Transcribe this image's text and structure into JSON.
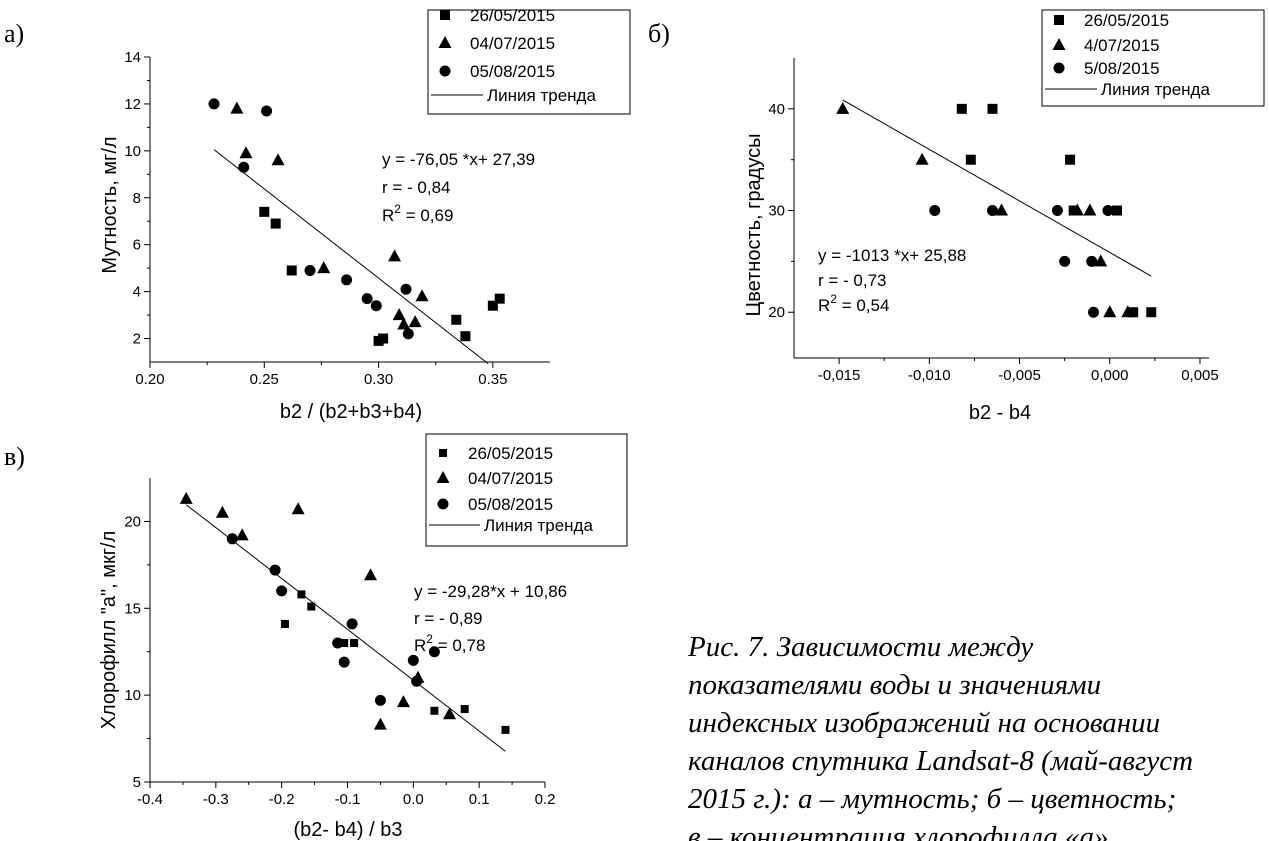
{
  "chart_data": [
    {
      "type": "scatter",
      "panel_label": "а)",
      "xlabel": "b2 / (b2+b3+b4)",
      "ylabel": "Мутность, мг/л",
      "xlim": [
        0.2,
        0.375
      ],
      "ylim": [
        1,
        14
      ],
      "xticks": [
        0.2,
        0.25,
        0.3,
        0.35
      ],
      "xtick_labels": [
        "0.20",
        "0.25",
        "0.30",
        "0.35"
      ],
      "yticks": [
        2,
        4,
        6,
        8,
        10,
        12,
        14
      ],
      "ytick_labels": [
        "2",
        "4",
        "6",
        "8",
        "10",
        "12",
        "14"
      ],
      "legend_position": "top-right",
      "series": [
        {
          "name": "26/05/2015",
          "marker": "square",
          "points": [
            [
              0.25,
              7.4
            ],
            [
              0.255,
              6.9
            ],
            [
              0.262,
              4.9
            ],
            [
              0.3,
              1.9
            ],
            [
              0.302,
              2.0
            ],
            [
              0.334,
              2.8
            ],
            [
              0.338,
              2.1
            ],
            [
              0.35,
              3.4
            ],
            [
              0.353,
              3.7
            ]
          ]
        },
        {
          "name": "04/07/2015",
          "marker": "triangle",
          "points": [
            [
              0.238,
              11.8
            ],
            [
              0.242,
              9.9
            ],
            [
              0.256,
              9.6
            ],
            [
              0.276,
              5.0
            ],
            [
              0.307,
              5.5
            ],
            [
              0.309,
              3.0
            ],
            [
              0.311,
              2.6
            ],
            [
              0.316,
              2.7
            ],
            [
              0.319,
              3.8
            ]
          ]
        },
        {
          "name": "05/08/2015",
          "marker": "circle",
          "points": [
            [
              0.228,
              12.0
            ],
            [
              0.251,
              11.7
            ],
            [
              0.241,
              9.3
            ],
            [
              0.27,
              4.9
            ],
            [
              0.286,
              4.5
            ],
            [
              0.295,
              3.7
            ],
            [
              0.299,
              3.4
            ],
            [
              0.312,
              4.1
            ],
            [
              0.313,
              2.2
            ]
          ]
        }
      ],
      "trend": {
        "name": "Линия тренда",
        "slope": -76.05,
        "intercept": 27.39,
        "x_range": [
          0.228,
          0.348
        ]
      },
      "annotations": {
        "equation": "y = -76,05 *x+ 27,39",
        "r": "r = - 0,84",
        "r2_prefix": "R",
        "r2_sup": "2",
        "r2_value": " = 0,69"
      }
    },
    {
      "type": "scatter",
      "panel_label": "б)",
      "xlabel": "b2 - b4",
      "ylabel": "Цветность, градусы",
      "xlim": [
        -0.0175,
        0.0055
      ],
      "ylim": [
        15.5,
        45
      ],
      "xticks": [
        -0.015,
        -0.01,
        -0.005,
        0.0,
        0.005
      ],
      "xtick_labels": [
        "-0,015",
        "-0,010",
        "-0,005",
        "0,000",
        "0,005"
      ],
      "yticks": [
        20,
        30,
        40
      ],
      "ytick_labels": [
        "20",
        "30",
        "40"
      ],
      "legend_position": "top-right",
      "series": [
        {
          "name": "26/05/2015",
          "marker": "square",
          "points": [
            [
              -0.0082,
              40
            ],
            [
              -0.0065,
              40
            ],
            [
              -0.0077,
              35
            ],
            [
              -0.0022,
              35
            ],
            [
              -0.002,
              30
            ],
            [
              0.0004,
              30
            ],
            [
              0.0013,
              20
            ],
            [
              0.0023,
              20
            ]
          ]
        },
        {
          "name": "4/07/2015",
          "marker": "triangle",
          "points": [
            [
              -0.0148,
              40
            ],
            [
              -0.0104,
              35
            ],
            [
              -0.006,
              30
            ],
            [
              -0.0018,
              30
            ],
            [
              -0.0011,
              30
            ],
            [
              -0.0005,
              25
            ],
            [
              0.0,
              20
            ],
            [
              0.001,
              20
            ]
          ]
        },
        {
          "name": "5/08/2015",
          "marker": "circle",
          "points": [
            [
              -0.0097,
              30
            ],
            [
              -0.0065,
              30
            ],
            [
              -0.0029,
              30
            ],
            [
              -0.0001,
              30
            ],
            [
              -0.0025,
              25
            ],
            [
              -0.001,
              25
            ],
            [
              -0.0009,
              20
            ]
          ]
        }
      ],
      "trend": {
        "name": "Линия тренда",
        "slope": -1013,
        "intercept": 25.88,
        "x_range": [
          -0.0148,
          0.0023
        ]
      },
      "annotations": {
        "equation": "y = -1013 *x+ 25,88",
        "r": "r = - 0,73",
        "r2_prefix": "R",
        "r2_sup": "2",
        "r2_value": " = 0,54"
      }
    },
    {
      "type": "scatter",
      "panel_label": "в)",
      "xlabel": "(b2- b4) / b3",
      "ylabel": "Хлорофилл \"а\", мкг/л",
      "xlim": [
        -0.4,
        0.2
      ],
      "ylim": [
        5,
        22.5
      ],
      "xticks": [
        -0.4,
        -0.3,
        -0.2,
        -0.1,
        0.0,
        0.1,
        0.2
      ],
      "xtick_labels": [
        "-0.4",
        "-0.3",
        "-0.2",
        "-0.1",
        "0.0",
        "0.1",
        "0.2"
      ],
      "yticks": [
        5,
        10,
        15,
        20
      ],
      "ytick_labels": [
        "5",
        "10",
        "15",
        "20"
      ],
      "legend_position": "top-right",
      "series": [
        {
          "name": "26/05/2015",
          "marker": "square-small",
          "points": [
            [
              -0.17,
              15.8
            ],
            [
              -0.155,
              15.1
            ],
            [
              -0.195,
              14.1
            ],
            [
              -0.105,
              13.0
            ],
            [
              -0.09,
              13.0
            ],
            [
              0.032,
              9.1
            ],
            [
              0.078,
              9.2
            ],
            [
              0.14,
              8.0
            ]
          ]
        },
        {
          "name": "04/07/2015",
          "marker": "triangle",
          "points": [
            [
              -0.345,
              21.3
            ],
            [
              -0.29,
              20.5
            ],
            [
              -0.26,
              19.2
            ],
            [
              -0.175,
              20.7
            ],
            [
              -0.065,
              16.9
            ],
            [
              -0.05,
              8.3
            ],
            [
              -0.015,
              9.6
            ],
            [
              0.007,
              11.0
            ],
            [
              0.055,
              8.9
            ]
          ]
        },
        {
          "name": "05/08/2015",
          "marker": "circle",
          "points": [
            [
              -0.275,
              19.0
            ],
            [
              -0.21,
              17.2
            ],
            [
              -0.2,
              16.0
            ],
            [
              -0.115,
              13.0
            ],
            [
              -0.105,
              11.9
            ],
            [
              -0.093,
              14.1
            ],
            [
              -0.05,
              9.7
            ],
            [
              0.0,
              12.0
            ],
            [
              0.005,
              10.8
            ],
            [
              0.032,
              12.5
            ]
          ]
        }
      ],
      "trend": {
        "name": "Линия тренда",
        "slope": -29.28,
        "intercept": 10.86,
        "x_range": [
          -0.345,
          0.14
        ]
      },
      "annotations": {
        "equation": "y = -29,28*x + 10,86",
        "r": "r = - 0,89",
        "r2_prefix": "R",
        "r2_sup": "2",
        "r2_value": " = 0,78"
      }
    }
  ],
  "caption": {
    "lines": [
      "Рис. 7. Зависимости между",
      "показателями воды и значениями",
      "индексных изображений на основании",
      "каналов спутника Landsat-8 (май-август",
      "2015 г.): а – мутность; б – цветность;",
      "в – концентрация хлорофилла «а»"
    ]
  }
}
